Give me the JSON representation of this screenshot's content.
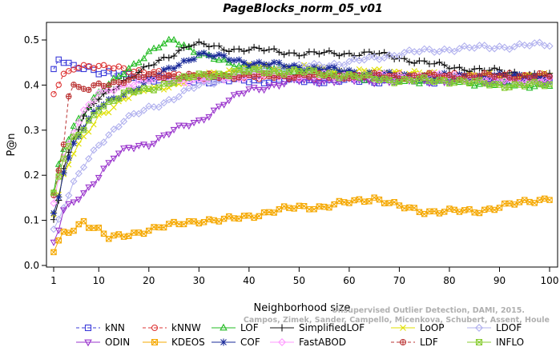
{
  "chart_data": {
    "type": "line",
    "title": "PageBlocks_norm_05_v01",
    "xlabel": "Neighborhood size",
    "ylabel": "P@n",
    "xlim": [
      1,
      100
    ],
    "ylim": [
      0,
      0.52
    ],
    "xticks": [
      1,
      10,
      20,
      30,
      40,
      50,
      60,
      70,
      80,
      90,
      100
    ],
    "yticks": [
      0.0,
      0.1,
      0.2,
      0.3,
      0.4,
      0.5
    ],
    "ytick_labels": [
      "0.0",
      "0.1",
      "0.2",
      "0.3",
      "0.4",
      "0.5"
    ],
    "grid": false,
    "legend_position": "bottom",
    "watermark": [
      "Unsupervised Outlier Detection, DAMI, 2015.",
      "Campos, Zimek, Sander, Campello, Micenkova, Schubert, Assent, Houle"
    ],
    "series": [
      {
        "name": "kNN",
        "color": "#3b3bd9",
        "marker": "square",
        "dash": "4,3",
        "points": [
          [
            1,
            0.43
          ],
          [
            2,
            0.455
          ],
          [
            3,
            0.45
          ],
          [
            5,
            0.44
          ],
          [
            8,
            0.44
          ],
          [
            10,
            0.43
          ],
          [
            15,
            0.42
          ],
          [
            20,
            0.415
          ],
          [
            25,
            0.41
          ],
          [
            30,
            0.41
          ],
          [
            40,
            0.41
          ],
          [
            50,
            0.41
          ],
          [
            60,
            0.41
          ],
          [
            70,
            0.41
          ],
          [
            80,
            0.41
          ],
          [
            90,
            0.41
          ],
          [
            100,
            0.41
          ]
        ]
      },
      {
        "name": "kNNW",
        "color": "#dd3333",
        "marker": "circle",
        "dash": "4,3",
        "points": [
          [
            1,
            0.38
          ],
          [
            2,
            0.4
          ],
          [
            3,
            0.42
          ],
          [
            5,
            0.44
          ],
          [
            8,
            0.445
          ],
          [
            10,
            0.44
          ],
          [
            15,
            0.435
          ],
          [
            20,
            0.43
          ],
          [
            25,
            0.42
          ],
          [
            30,
            0.42
          ],
          [
            40,
            0.42
          ],
          [
            50,
            0.42
          ],
          [
            60,
            0.42
          ],
          [
            70,
            0.42
          ],
          [
            80,
            0.42
          ],
          [
            90,
            0.42
          ],
          [
            100,
            0.42
          ]
        ]
      },
      {
        "name": "LOF",
        "color": "#22bb22",
        "marker": "triangle",
        "dash": "none",
        "points": [
          [
            1,
            0.16
          ],
          [
            2,
            0.22
          ],
          [
            3,
            0.26
          ],
          [
            5,
            0.31
          ],
          [
            7,
            0.34
          ],
          [
            10,
            0.38
          ],
          [
            15,
            0.43
          ],
          [
            20,
            0.47
          ],
          [
            23,
            0.49
          ],
          [
            25,
            0.5
          ],
          [
            27,
            0.49
          ],
          [
            30,
            0.47
          ],
          [
            35,
            0.45
          ],
          [
            40,
            0.44
          ],
          [
            50,
            0.43
          ],
          [
            60,
            0.42
          ],
          [
            70,
            0.41
          ],
          [
            80,
            0.41
          ],
          [
            90,
            0.4
          ],
          [
            100,
            0.4
          ]
        ]
      },
      {
        "name": "SimplifiedLOF",
        "color": "#111111",
        "marker": "plus",
        "dash": "none",
        "points": [
          [
            1,
            0.1
          ],
          [
            2,
            0.15
          ],
          [
            3,
            0.22
          ],
          [
            5,
            0.28
          ],
          [
            7,
            0.33
          ],
          [
            10,
            0.37
          ],
          [
            15,
            0.41
          ],
          [
            20,
            0.44
          ],
          [
            25,
            0.47
          ],
          [
            28,
            0.49
          ],
          [
            30,
            0.49
          ],
          [
            35,
            0.48
          ],
          [
            40,
            0.48
          ],
          [
            50,
            0.47
          ],
          [
            60,
            0.47
          ],
          [
            65,
            0.47
          ],
          [
            70,
            0.46
          ],
          [
            80,
            0.44
          ],
          [
            90,
            0.43
          ],
          [
            100,
            0.42
          ]
        ]
      },
      {
        "name": "LoOP",
        "color": "#e0e000",
        "marker": "cross",
        "dash": "none",
        "points": [
          [
            1,
            0.12
          ],
          [
            2,
            0.16
          ],
          [
            3,
            0.2
          ],
          [
            5,
            0.25
          ],
          [
            7,
            0.28
          ],
          [
            10,
            0.33
          ],
          [
            15,
            0.37
          ],
          [
            20,
            0.39
          ],
          [
            25,
            0.4
          ],
          [
            30,
            0.42
          ],
          [
            40,
            0.44
          ],
          [
            50,
            0.44
          ],
          [
            60,
            0.43
          ],
          [
            70,
            0.43
          ],
          [
            80,
            0.42
          ],
          [
            90,
            0.42
          ],
          [
            100,
            0.42
          ]
        ]
      },
      {
        "name": "LDOF",
        "color": "#b0b0ee",
        "marker": "diamond",
        "dash": "none",
        "points": [
          [
            1,
            0.08
          ],
          [
            2,
            0.1
          ],
          [
            3,
            0.13
          ],
          [
            5,
            0.18
          ],
          [
            7,
            0.22
          ],
          [
            10,
            0.27
          ],
          [
            15,
            0.32
          ],
          [
            20,
            0.35
          ],
          [
            25,
            0.37
          ],
          [
            30,
            0.4
          ],
          [
            40,
            0.43
          ],
          [
            50,
            0.44
          ],
          [
            60,
            0.45
          ],
          [
            70,
            0.47
          ],
          [
            80,
            0.48
          ],
          [
            90,
            0.485
          ],
          [
            100,
            0.49
          ]
        ]
      },
      {
        "name": "ODIN",
        "color": "#9933cc",
        "marker": "triangle-down",
        "dash": "none",
        "points": [
          [
            1,
            0.05
          ],
          [
            2,
            0.08
          ],
          [
            3,
            0.12
          ],
          [
            5,
            0.14
          ],
          [
            7,
            0.16
          ],
          [
            10,
            0.2
          ],
          [
            13,
            0.24
          ],
          [
            16,
            0.26
          ],
          [
            20,
            0.27
          ],
          [
            25,
            0.3
          ],
          [
            30,
            0.32
          ],
          [
            35,
            0.36
          ],
          [
            40,
            0.39
          ],
          [
            45,
            0.4
          ],
          [
            50,
            0.41
          ],
          [
            60,
            0.41
          ],
          [
            70,
            0.41
          ],
          [
            80,
            0.41
          ],
          [
            90,
            0.41
          ],
          [
            100,
            0.41
          ]
        ]
      },
      {
        "name": "KDEOS",
        "color": "#f5a800",
        "marker": "square-x",
        "dash": "none",
        "points": [
          [
            1,
            0.03
          ],
          [
            2,
            0.05
          ],
          [
            3,
            0.07
          ],
          [
            5,
            0.08
          ],
          [
            7,
            0.1
          ],
          [
            8,
            0.09
          ],
          [
            10,
            0.08
          ],
          [
            12,
            0.06
          ],
          [
            15,
            0.065
          ],
          [
            20,
            0.08
          ],
          [
            25,
            0.09
          ],
          [
            30,
            0.1
          ],
          [
            35,
            0.1
          ],
          [
            40,
            0.11
          ],
          [
            45,
            0.12
          ],
          [
            50,
            0.13
          ],
          [
            55,
            0.13
          ],
          [
            60,
            0.14
          ],
          [
            65,
            0.15
          ],
          [
            70,
            0.13
          ],
          [
            75,
            0.12
          ],
          [
            80,
            0.12
          ],
          [
            85,
            0.12
          ],
          [
            90,
            0.13
          ],
          [
            95,
            0.14
          ],
          [
            100,
            0.15
          ]
        ]
      },
      {
        "name": "COF",
        "color": "#1a2a99",
        "marker": "asterisk",
        "dash": "none",
        "points": [
          [
            1,
            0.11
          ],
          [
            2,
            0.15
          ],
          [
            3,
            0.21
          ],
          [
            5,
            0.27
          ],
          [
            7,
            0.31
          ],
          [
            10,
            0.35
          ],
          [
            15,
            0.38
          ],
          [
            20,
            0.41
          ],
          [
            25,
            0.44
          ],
          [
            30,
            0.47
          ],
          [
            35,
            0.46
          ],
          [
            40,
            0.45
          ],
          [
            50,
            0.44
          ],
          [
            60,
            0.43
          ],
          [
            70,
            0.42
          ],
          [
            80,
            0.42
          ],
          [
            90,
            0.42
          ],
          [
            100,
            0.42
          ]
        ]
      },
      {
        "name": "FastABOD",
        "color": "#ff99ff",
        "marker": "diamond",
        "dash": "none",
        "points": [
          [
            1,
            0.14
          ],
          [
            2,
            0.2
          ],
          [
            3,
            0.24
          ],
          [
            5,
            0.3
          ],
          [
            7,
            0.34
          ],
          [
            10,
            0.38
          ],
          [
            15,
            0.4
          ],
          [
            20,
            0.41
          ],
          [
            30,
            0.41
          ],
          [
            40,
            0.42
          ],
          [
            50,
            0.42
          ],
          [
            60,
            0.42
          ],
          [
            70,
            0.42
          ],
          [
            80,
            0.42
          ],
          [
            90,
            0.41
          ],
          [
            100,
            0.41
          ]
        ]
      },
      {
        "name": "LDF",
        "color": "#bb3333",
        "marker": "circle-plus",
        "dash": "4,3",
        "points": [
          [
            1,
            0.16
          ],
          [
            2,
            0.21
          ],
          [
            3,
            0.27
          ],
          [
            4,
            0.38
          ],
          [
            5,
            0.4
          ],
          [
            6,
            0.39
          ],
          [
            8,
            0.39
          ],
          [
            10,
            0.4
          ],
          [
            15,
            0.41
          ],
          [
            20,
            0.42
          ],
          [
            30,
            0.42
          ],
          [
            40,
            0.42
          ],
          [
            50,
            0.42
          ],
          [
            60,
            0.42
          ],
          [
            70,
            0.42
          ],
          [
            80,
            0.42
          ],
          [
            90,
            0.42
          ],
          [
            100,
            0.42
          ]
        ]
      },
      {
        "name": "INFLO",
        "color": "#88cc33",
        "marker": "square-x",
        "dash": "none",
        "points": [
          [
            1,
            0.16
          ],
          [
            2,
            0.2
          ],
          [
            3,
            0.24
          ],
          [
            5,
            0.28
          ],
          [
            7,
            0.3
          ],
          [
            10,
            0.35
          ],
          [
            15,
            0.38
          ],
          [
            20,
            0.39
          ],
          [
            25,
            0.41
          ],
          [
            30,
            0.42
          ],
          [
            40,
            0.43
          ],
          [
            50,
            0.43
          ],
          [
            60,
            0.42
          ],
          [
            70,
            0.41
          ],
          [
            80,
            0.41
          ],
          [
            90,
            0.4
          ],
          [
            100,
            0.4
          ]
        ]
      }
    ]
  }
}
